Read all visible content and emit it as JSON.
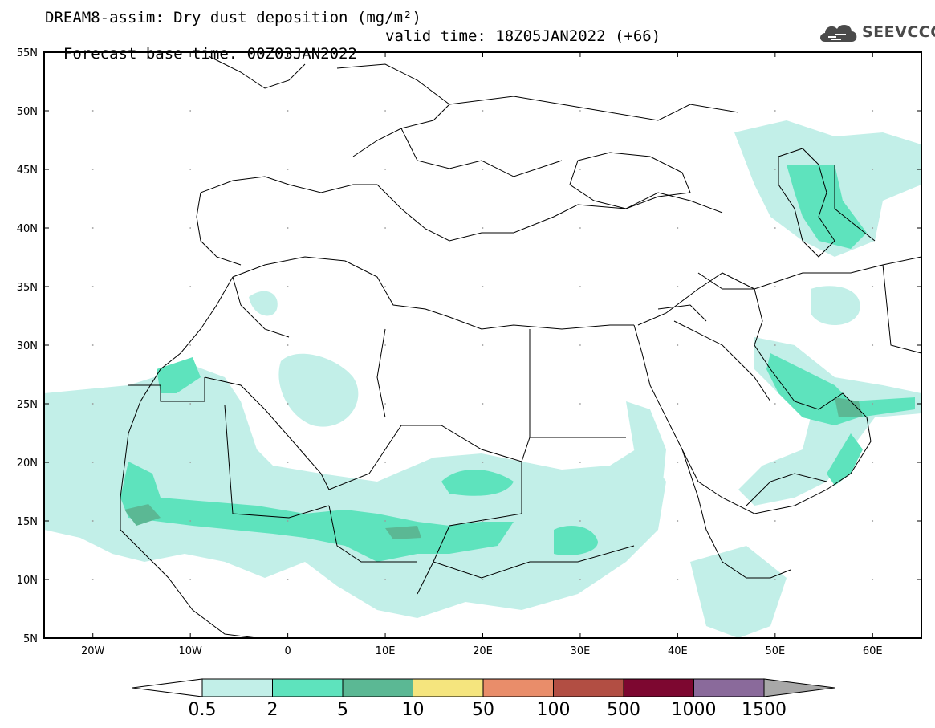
{
  "title": {
    "line1": "DREAM8-assim: Dry dust deposition (mg/m²)",
    "line2_base": "Forecast base time: 00Z03JAN2022",
    "line2_valid": "valid time: 18Z05JAN2022 (+66)"
  },
  "logo": {
    "text": "SEEVCCC",
    "icon": "cloud-icon"
  },
  "map": {
    "lon_range": [
      -25,
      65
    ],
    "lat_range": [
      5,
      55
    ],
    "lat_ticks": [
      "55N",
      "50N",
      "45N",
      "40N",
      "35N",
      "30N",
      "25N",
      "20N",
      "15N",
      "10N",
      "5N"
    ],
    "lon_ticks": [
      "20W",
      "10W",
      "0",
      "10E",
      "20E",
      "30E",
      "40E",
      "50E",
      "60E"
    ]
  },
  "colorbar": {
    "labels": [
      "0.5",
      "2",
      "5",
      "10",
      "50",
      "100",
      "500",
      "1000",
      "1500"
    ],
    "colors": [
      "#c2efe8",
      "#5ee3bd",
      "#5bb894",
      "#f5e57e",
      "#e98d6a",
      "#b24e43",
      "#7d0730",
      "#8a6a9b"
    ],
    "under_color": "#ffffff",
    "over_color": "#a8a8a8"
  }
}
